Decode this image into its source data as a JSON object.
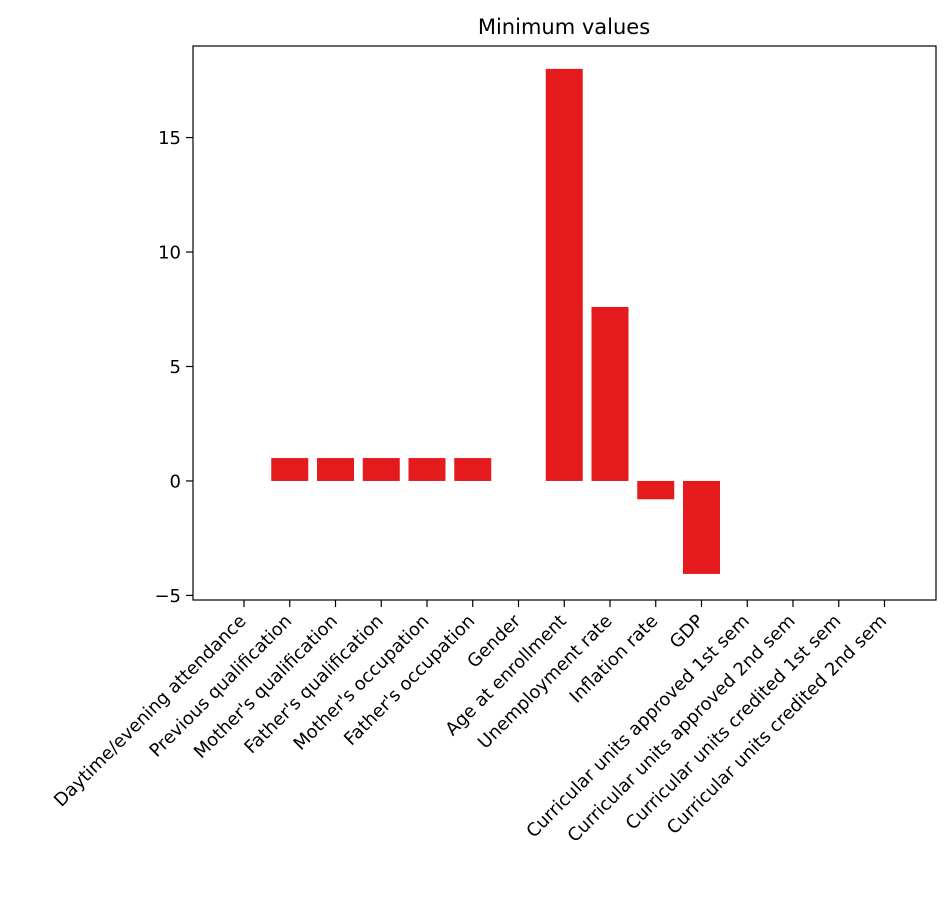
{
  "chart_data": {
    "type": "bar",
    "title": "Minimum values",
    "xlabel": "",
    "ylabel": "",
    "ylim": [
      -5.2,
      19.0
    ],
    "yticks": [
      -5,
      0,
      5,
      10,
      15
    ],
    "ytick_labels": [
      "−5",
      "0",
      "5",
      "10",
      "15"
    ],
    "grid": false,
    "bar_color": "#e41a1c",
    "categories": [
      "Daytime/evening attendance",
      "Previous qualification",
      "Mother's qualification",
      "Father's qualification",
      "Mother's occupation",
      "Father's occupation",
      "Gender",
      "Age at enrollment",
      "Unemployment rate",
      "Inflation rate",
      "GDP",
      "Curricular units approved 1st sem",
      "Curricular units approved 2nd sem",
      "Curricular units credited 1st sem",
      "Curricular units credited 2nd sem"
    ],
    "values": [
      0,
      1,
      1,
      1,
      1,
      1,
      0,
      18,
      7.6,
      -0.8,
      -4.06,
      0,
      0,
      0,
      0
    ]
  }
}
